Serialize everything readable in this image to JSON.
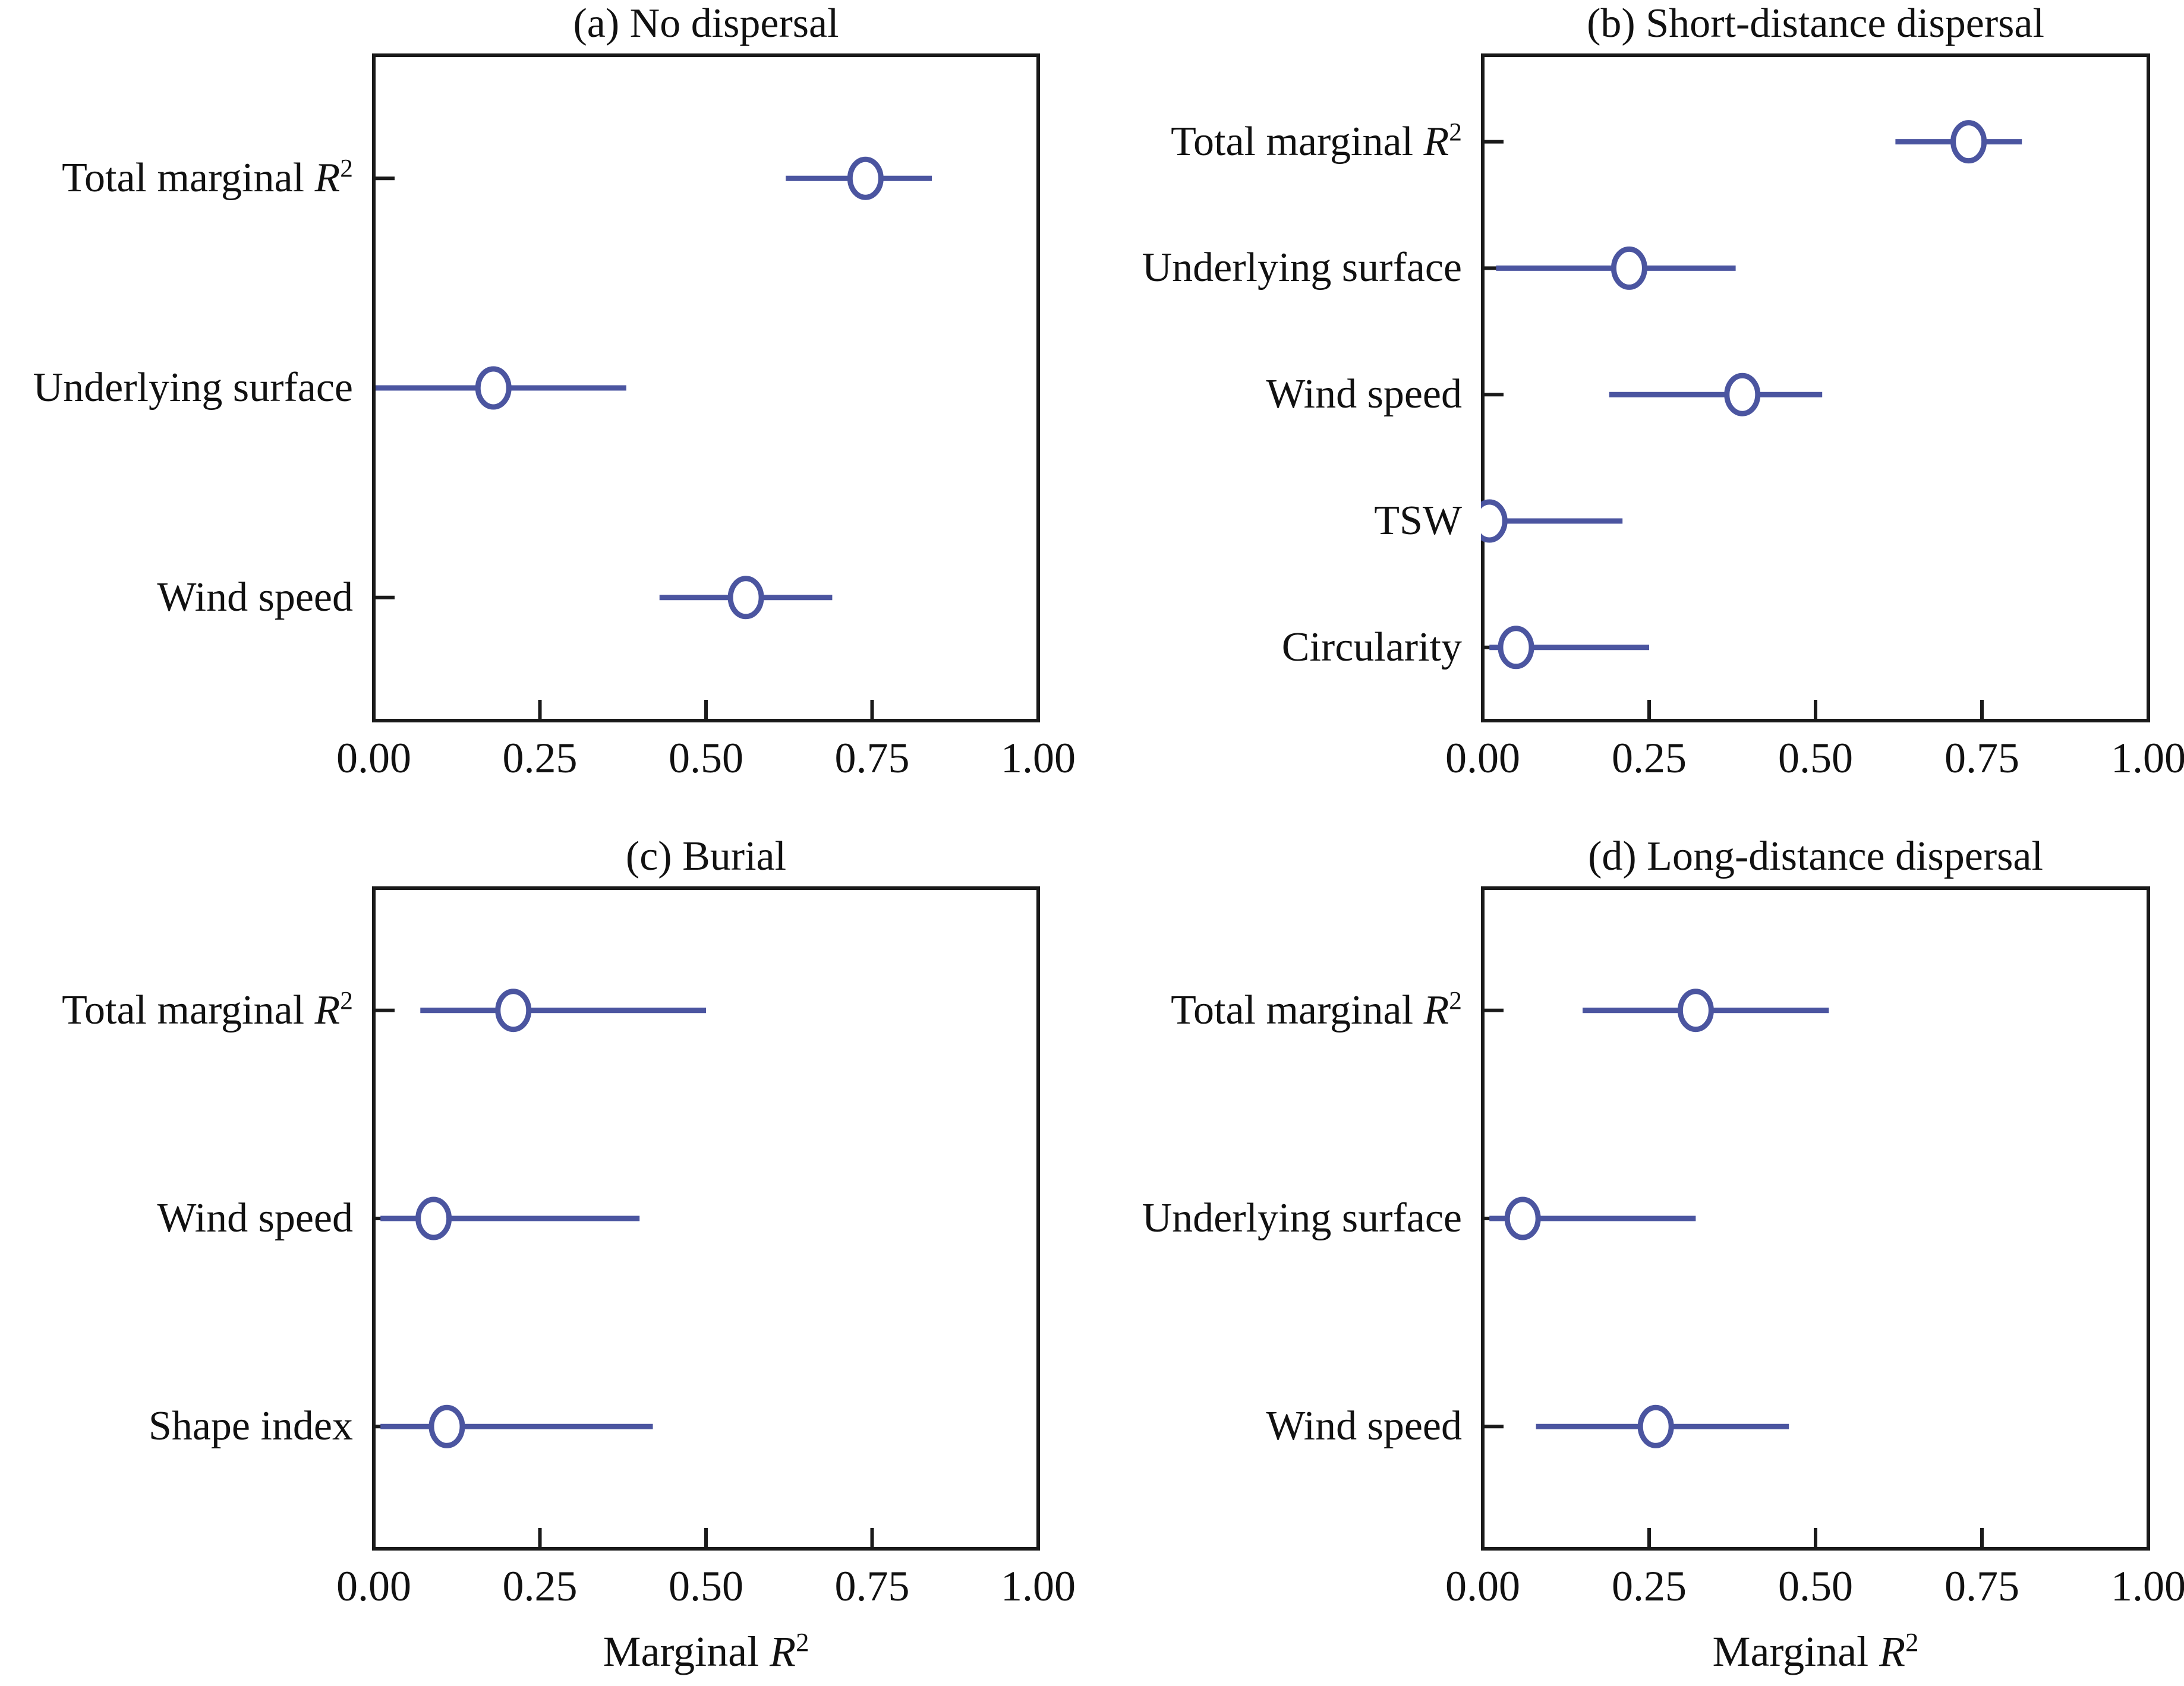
{
  "figure": {
    "background": "#ffffff",
    "accent_color": "#4b55a0",
    "axis_color": "#1a1a1a",
    "marker": "open-circle",
    "x_axis_title": "Marginal R²"
  },
  "chart_data": [
    {
      "id": "a",
      "type": "scatter",
      "title": "(a) No dispersal",
      "xlim": [
        0,
        1
      ],
      "x_ticks": [
        0,
        0.25,
        0.5,
        0.75,
        1
      ],
      "x_tick_labels": [
        "0.00",
        "0.25",
        "0.50",
        "0.75",
        "1.00"
      ],
      "xlabel": "",
      "categories": [
        "Total marginal R²",
        "Underlying surface",
        "Wind speed"
      ],
      "points": [
        {
          "category": "Total marginal R²",
          "estimate": 0.74,
          "ci_low": 0.62,
          "ci_high": 0.84
        },
        {
          "category": "Underlying surface",
          "estimate": 0.18,
          "ci_low": 0.0,
          "ci_high": 0.38
        },
        {
          "category": "Wind speed",
          "estimate": 0.56,
          "ci_low": 0.43,
          "ci_high": 0.69
        }
      ]
    },
    {
      "id": "b",
      "type": "scatter",
      "title": "(b) Short-distance dispersal",
      "xlim": [
        0,
        1
      ],
      "x_ticks": [
        0,
        0.25,
        0.5,
        0.75,
        1
      ],
      "x_tick_labels": [
        "0.00",
        "0.25",
        "0.50",
        "0.75",
        "1.00"
      ],
      "xlabel": "",
      "categories": [
        "Total marginal R²",
        "Underlying surface",
        "Wind speed",
        "TSW",
        "Circularity"
      ],
      "points": [
        {
          "category": "Total marginal R²",
          "estimate": 0.73,
          "ci_low": 0.62,
          "ci_high": 0.81
        },
        {
          "category": "Underlying surface",
          "estimate": 0.22,
          "ci_low": 0.02,
          "ci_high": 0.38
        },
        {
          "category": "Wind speed",
          "estimate": 0.39,
          "ci_low": 0.19,
          "ci_high": 0.51
        },
        {
          "category": "TSW",
          "estimate": 0.01,
          "ci_low": 0.0,
          "ci_high": 0.21
        },
        {
          "category": "Circularity",
          "estimate": 0.05,
          "ci_low": 0.01,
          "ci_high": 0.25
        }
      ]
    },
    {
      "id": "c",
      "type": "scatter",
      "title": "(c) Burial",
      "xlim": [
        0,
        1
      ],
      "x_ticks": [
        0,
        0.25,
        0.5,
        0.75,
        1
      ],
      "x_tick_labels": [
        "0.00",
        "0.25",
        "0.50",
        "0.75",
        "1.00"
      ],
      "xlabel": "Marginal R²",
      "categories": [
        "Total marginal R²",
        "Wind speed",
        "Shape index"
      ],
      "points": [
        {
          "category": "Total marginal R²",
          "estimate": 0.21,
          "ci_low": 0.07,
          "ci_high": 0.5
        },
        {
          "category": "Wind speed",
          "estimate": 0.09,
          "ci_low": 0.01,
          "ci_high": 0.4
        },
        {
          "category": "Shape index",
          "estimate": 0.11,
          "ci_low": 0.01,
          "ci_high": 0.42
        }
      ]
    },
    {
      "id": "d",
      "type": "scatter",
      "title": "(d) Long-distance dispersal",
      "xlim": [
        0,
        1
      ],
      "x_ticks": [
        0,
        0.25,
        0.5,
        0.75,
        1
      ],
      "x_tick_labels": [
        "0.00",
        "0.25",
        "0.50",
        "0.75",
        "1.00"
      ],
      "xlabel": "Marginal R²",
      "categories": [
        "Total marginal R²",
        "Underlying surface",
        "Wind speed"
      ],
      "points": [
        {
          "category": "Total marginal R²",
          "estimate": 0.32,
          "ci_low": 0.15,
          "ci_high": 0.52
        },
        {
          "category": "Underlying surface",
          "estimate": 0.06,
          "ci_low": 0.01,
          "ci_high": 0.32
        },
        {
          "category": "Wind speed",
          "estimate": 0.26,
          "ci_low": 0.08,
          "ci_high": 0.46
        }
      ]
    }
  ]
}
